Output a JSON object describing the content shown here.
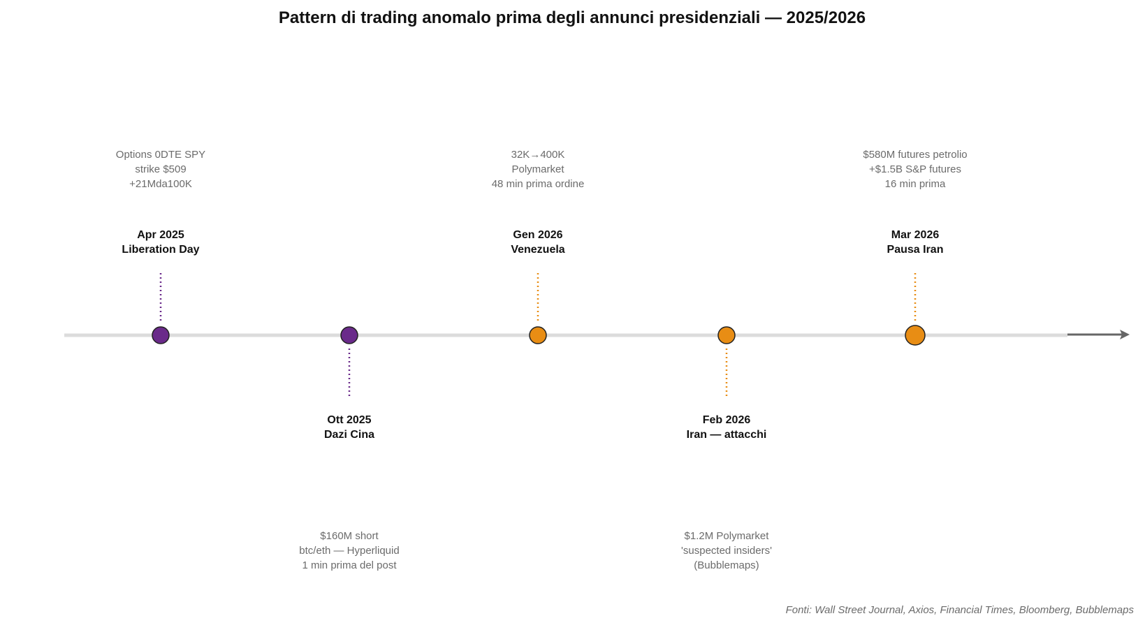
{
  "title": "Pattern di trading anomalo prima degli annunci presidenziali — 2025/2026",
  "source": "Fonti: Wall Street Journal, Axios, Financial Times, Bloomberg, Bubblemaps",
  "colors": {
    "purple": "#6a2a8a",
    "orange": "#e88d14",
    "axis": "#dcdcdc",
    "arrow": "#666666",
    "detail_text": "#6b6b6b"
  },
  "events": [
    {
      "id": "liberation-day",
      "date": "Apr 2025",
      "name": "Liberation Day",
      "position": "above",
      "color": "purple",
      "details": [
        "Options 0DTE SPY",
        "strike $509",
        "+21Mda100K"
      ]
    },
    {
      "id": "dazi-cina",
      "date": "Ott 2025",
      "name": "Dazi Cina",
      "position": "below",
      "color": "purple",
      "details": [
        "$160M short",
        "btc/eth — Hyperliquid",
        "1 min prima del post"
      ]
    },
    {
      "id": "venezuela",
      "date": "Gen 2026",
      "name": "Venezuela",
      "position": "above",
      "color": "orange",
      "details": [
        "32K→400K",
        "Polymarket",
        "48 min prima ordine"
      ]
    },
    {
      "id": "iran-attacchi",
      "date": "Feb 2026",
      "name": "Iran — attacchi",
      "position": "below",
      "color": "orange",
      "details": [
        "$1.2M Polymarket",
        "'suspected insiders'",
        "(Bubblemaps)"
      ]
    },
    {
      "id": "pausa-iran",
      "date": "Mar 2026",
      "name": "Pausa Iran",
      "position": "above",
      "color": "orange",
      "details": [
        "$580M futures petrolio",
        "+$1.5B S&P futures",
        "16 min prima"
      ]
    }
  ]
}
